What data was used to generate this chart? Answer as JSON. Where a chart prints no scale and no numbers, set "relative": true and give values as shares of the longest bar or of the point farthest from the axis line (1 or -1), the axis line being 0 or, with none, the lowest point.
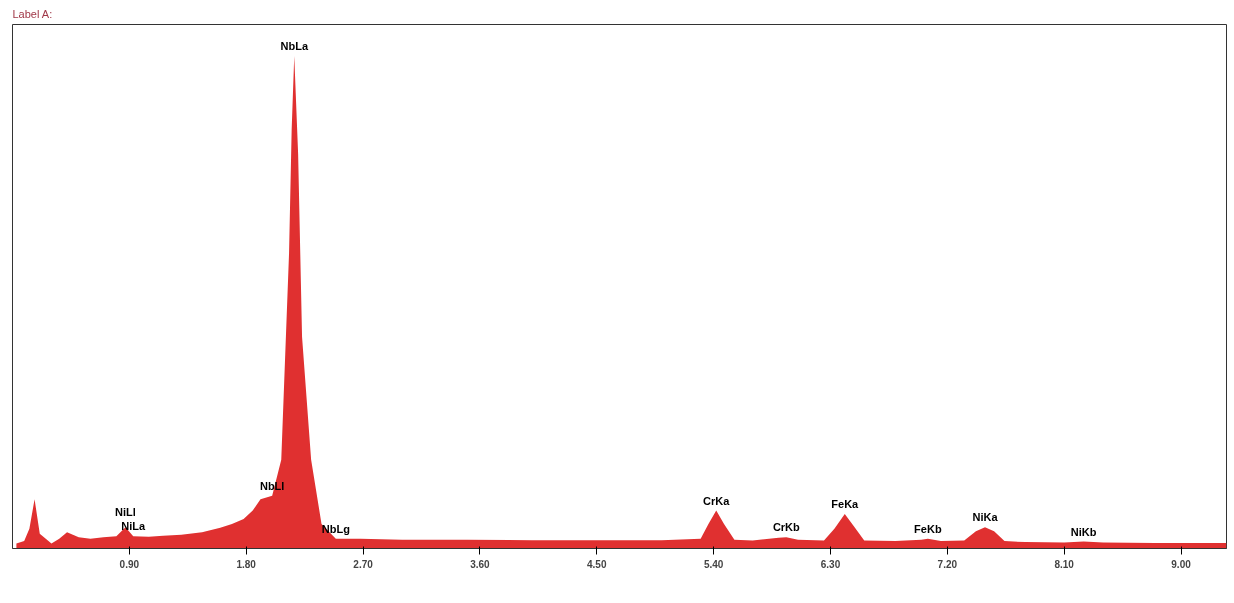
{
  "chart_data": {
    "type": "area",
    "title": "Label A:",
    "relative": true,
    "xlim": [
      0,
      9.35
    ],
    "xticks": [
      {
        "value": 0.9,
        "label": "0.90"
      },
      {
        "value": 1.8,
        "label": "1.80"
      },
      {
        "value": 2.7,
        "label": "2.70"
      },
      {
        "value": 3.6,
        "label": "3.60"
      },
      {
        "value": 4.5,
        "label": "4.50"
      },
      {
        "value": 5.4,
        "label": "5.40"
      },
      {
        "value": 6.3,
        "label": "6.30"
      },
      {
        "value": 7.2,
        "label": "7.20"
      },
      {
        "value": 8.1,
        "label": "8.10"
      },
      {
        "value": 9.0,
        "label": "9.00"
      }
    ],
    "series": [
      {
        "color": "#e03030",
        "x": [
          0.03,
          0.09,
          0.13,
          0.17,
          0.21,
          0.3,
          0.36,
          0.42,
          0.51,
          0.6,
          0.7,
          0.8,
          0.87,
          0.93,
          1.05,
          1.16,
          1.3,
          1.46,
          1.6,
          1.69,
          1.78,
          1.85,
          1.91,
          2.0,
          2.07,
          2.13,
          2.15,
          2.17,
          2.2,
          2.23,
          2.3,
          2.38,
          2.49,
          2.68,
          3.0,
          3.5,
          4.0,
          4.5,
          5.0,
          5.3,
          5.36,
          5.42,
          5.48,
          5.56,
          5.7,
          5.9,
          5.96,
          6.05,
          6.25,
          6.33,
          6.41,
          6.48,
          6.56,
          6.8,
          7.0,
          7.05,
          7.15,
          7.33,
          7.42,
          7.49,
          7.56,
          7.64,
          7.8,
          8.1,
          8.25,
          8.4,
          8.8,
          9.35
        ],
        "values": [
          0.01,
          0.015,
          0.04,
          0.1,
          0.03,
          0.01,
          0.02,
          0.033,
          0.023,
          0.02,
          0.023,
          0.025,
          0.043,
          0.025,
          0.024,
          0.026,
          0.028,
          0.033,
          0.042,
          0.05,
          0.06,
          0.077,
          0.1,
          0.107,
          0.18,
          0.6,
          0.85,
          1.0,
          0.8,
          0.43,
          0.18,
          0.05,
          0.02,
          0.02,
          0.018,
          0.018,
          0.017,
          0.017,
          0.017,
          0.02,
          0.05,
          0.077,
          0.05,
          0.018,
          0.016,
          0.022,
          0.023,
          0.018,
          0.016,
          0.04,
          0.07,
          0.045,
          0.016,
          0.015,
          0.018,
          0.02,
          0.015,
          0.016,
          0.035,
          0.043,
          0.035,
          0.015,
          0.013,
          0.012,
          0.014,
          0.012,
          0.011,
          0.011
        ]
      }
    ],
    "annotations": [
      {
        "text": "NiLa",
        "x": 0.93,
        "y": 0.025
      },
      {
        "text": "NiLl",
        "x": 0.87,
        "y": 0.043
      },
      {
        "text": "NbLl",
        "x": 2.0,
        "y": 0.107
      },
      {
        "text": "NbLa",
        "x": 2.17,
        "y": 1.0
      },
      {
        "text": "NbLg",
        "x": 2.49,
        "y": 0.02
      },
      {
        "text": "CrKa",
        "x": 5.42,
        "y": 0.077
      },
      {
        "text": "CrKb",
        "x": 5.96,
        "y": 0.023
      },
      {
        "text": "FeKa",
        "x": 6.41,
        "y": 0.07
      },
      {
        "text": "FeKb",
        "x": 7.05,
        "y": 0.02
      },
      {
        "text": "NiKa",
        "x": 7.49,
        "y": 0.043
      },
      {
        "text": "NiKb",
        "x": 8.25,
        "y": 0.014
      }
    ]
  }
}
